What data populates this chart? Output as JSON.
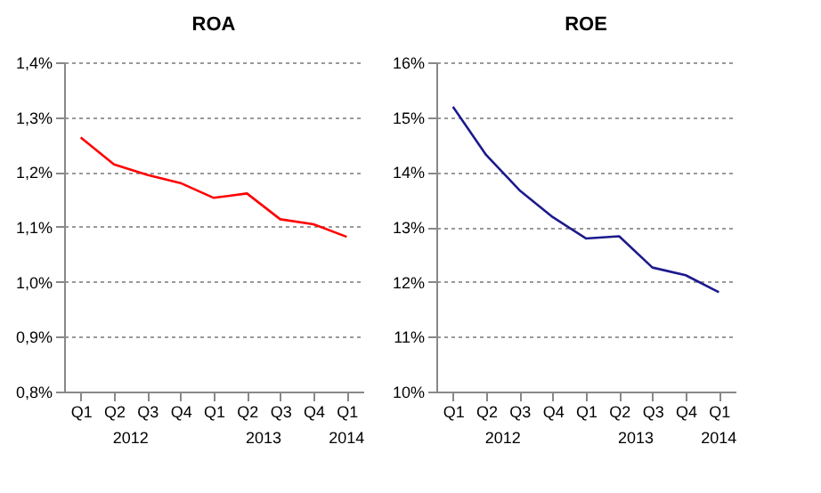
{
  "chart_data": [
    {
      "type": "line",
      "title": "ROA",
      "categories": [
        "Q1",
        "Q2",
        "Q3",
        "Q4",
        "Q1",
        "Q2",
        "Q3",
        "Q4",
        "Q1"
      ],
      "series": [
        {
          "color": "#ff0000",
          "values": [
            1.263,
            1.214,
            1.195,
            1.18,
            1.153,
            1.161,
            1.114,
            1.105,
            1.082
          ]
        }
      ],
      "ylim": [
        0.8,
        1.4
      ],
      "yticks": [
        {
          "value": 0.8,
          "label": "0,8%"
        },
        {
          "value": 0.9,
          "label": "0,9%"
        },
        {
          "value": 1.0,
          "label": "1,0%"
        },
        {
          "value": 1.1,
          "label": "1,1%"
        },
        {
          "value": 1.2,
          "label": "1,2%"
        },
        {
          "value": 1.3,
          "label": "1,3%"
        },
        {
          "value": 1.4,
          "label": "1,4%"
        }
      ],
      "grid": "y",
      "annotations": [
        "2012",
        "2013",
        "2014"
      ]
    },
    {
      "type": "line",
      "title": "ROE",
      "categories": [
        "Q1",
        "Q2",
        "Q3",
        "Q4",
        "Q1",
        "Q2",
        "Q3",
        "Q4",
        "Q1"
      ],
      "series": [
        {
          "color": "#1c1a8c",
          "values": [
            15.19,
            14.31,
            13.67,
            13.18,
            12.79,
            12.83,
            12.26,
            12.12,
            11.81
          ]
        }
      ],
      "ylim": [
        10,
        16
      ],
      "yticks": [
        {
          "value": 10,
          "label": "10%"
        },
        {
          "value": 11,
          "label": "11%"
        },
        {
          "value": 12,
          "label": "12%"
        },
        {
          "value": 13,
          "label": "13%"
        },
        {
          "value": 14,
          "label": "14%"
        },
        {
          "value": 15,
          "label": "15%"
        },
        {
          "value": 16,
          "label": "16%"
        }
      ],
      "grid": "y",
      "annotations": [
        "2012",
        "2013",
        "2014"
      ]
    }
  ]
}
